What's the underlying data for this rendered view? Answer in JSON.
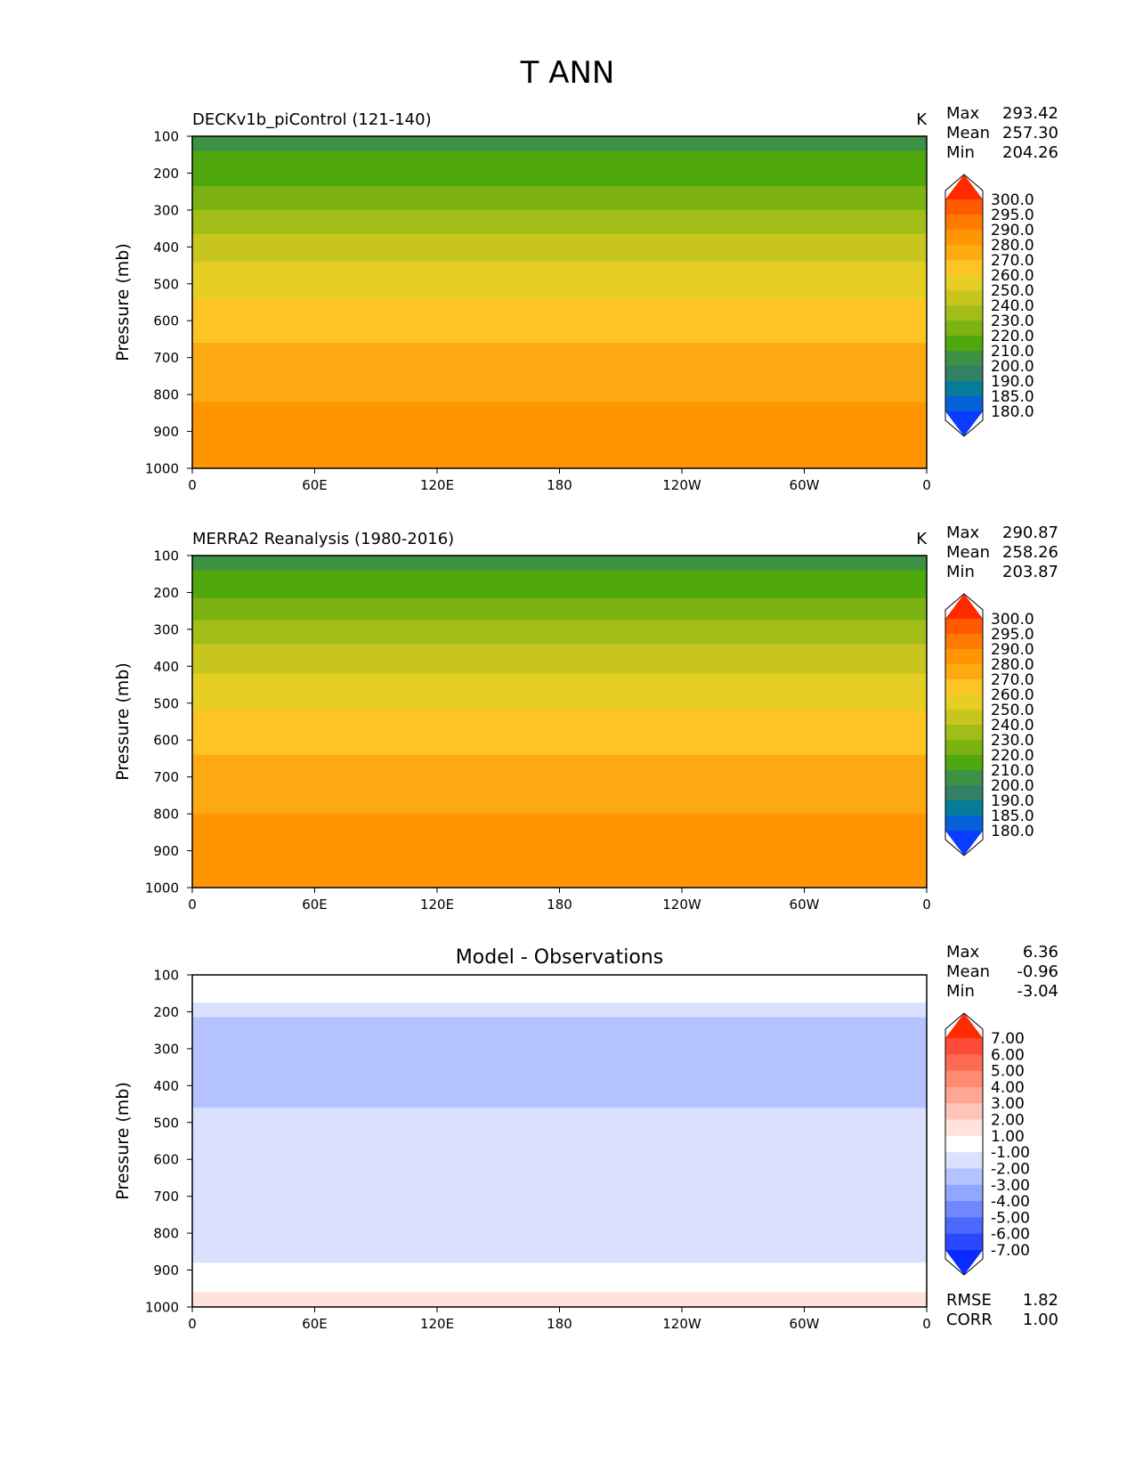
{
  "title": "T ANN",
  "chart_data": [
    {
      "type": "heatmap",
      "title": "DECKv1b_piControl (121-140)",
      "units": "K",
      "ylabel": "Pressure (mb)",
      "xlabel": "",
      "x_ticks": [
        "0",
        "60E",
        "120E",
        "180",
        "120W",
        "60W",
        "0"
      ],
      "y_ticks": [
        "100",
        "200",
        "300",
        "400",
        "500",
        "600",
        "700",
        "800",
        "900",
        "1000"
      ],
      "ylim": [
        1000,
        100
      ],
      "stats": [
        {
          "label": "Max",
          "value": "293.42"
        },
        {
          "label": "Mean",
          "value": "257.30"
        },
        {
          "label": "Min",
          "value": "204.26"
        }
      ],
      "colorbar": {
        "labels": [
          "300.0",
          "295.0",
          "290.0",
          "280.0",
          "270.0",
          "260.0",
          "250.0",
          "240.0",
          "230.0",
          "220.0",
          "210.0",
          "200.0",
          "190.0",
          "185.0",
          "180.0"
        ],
        "colors": [
          "#ff2a00",
          "#ff5a00",
          "#ff7a00",
          "#ff9500",
          "#fdaa12",
          "#fec424",
          "#e6ce24",
          "#c8c61e",
          "#a2bd18",
          "#7cb211",
          "#4fa90e",
          "#3c9142",
          "#338164",
          "#057d99",
          "#0561d8",
          "#0a3cff"
        ]
      },
      "bands": [
        {
          "p_top": 100,
          "p_bottom": 140,
          "color": "#3c9142"
        },
        {
          "p_top": 140,
          "p_bottom": 235,
          "color": "#4fa90e"
        },
        {
          "p_top": 235,
          "p_bottom": 300,
          "color": "#7cb211"
        },
        {
          "p_top": 300,
          "p_bottom": 365,
          "color": "#a2bd18"
        },
        {
          "p_top": 365,
          "p_bottom": 440,
          "color": "#c8c61e"
        },
        {
          "p_top": 440,
          "p_bottom": 540,
          "color": "#e6ce24"
        },
        {
          "p_top": 540,
          "p_bottom": 660,
          "color": "#fec424"
        },
        {
          "p_top": 660,
          "p_bottom": 820,
          "color": "#fdaa12"
        },
        {
          "p_top": 820,
          "p_bottom": 1000,
          "color": "#ff9500"
        }
      ]
    },
    {
      "type": "heatmap",
      "title": "MERRA2 Reanalysis (1980-2016)",
      "units": "K",
      "ylabel": "Pressure (mb)",
      "xlabel": "",
      "x_ticks": [
        "0",
        "60E",
        "120E",
        "180",
        "120W",
        "60W",
        "0"
      ],
      "y_ticks": [
        "100",
        "200",
        "300",
        "400",
        "500",
        "600",
        "700",
        "800",
        "900",
        "1000"
      ],
      "ylim": [
        1000,
        100
      ],
      "stats": [
        {
          "label": "Max",
          "value": "290.87"
        },
        {
          "label": "Mean",
          "value": "258.26"
        },
        {
          "label": "Min",
          "value": "203.87"
        }
      ],
      "colorbar": {
        "labels": [
          "300.0",
          "295.0",
          "290.0",
          "280.0",
          "270.0",
          "260.0",
          "250.0",
          "240.0",
          "230.0",
          "220.0",
          "210.0",
          "200.0",
          "190.0",
          "185.0",
          "180.0"
        ],
        "colors": [
          "#ff2a00",
          "#ff5a00",
          "#ff7a00",
          "#ff9500",
          "#fdaa12",
          "#fec424",
          "#e6ce24",
          "#c8c61e",
          "#a2bd18",
          "#7cb211",
          "#4fa90e",
          "#3c9142",
          "#338164",
          "#057d99",
          "#0561d8",
          "#0a3cff"
        ]
      },
      "bands": [
        {
          "p_top": 100,
          "p_bottom": 140,
          "color": "#3c9142"
        },
        {
          "p_top": 140,
          "p_bottom": 215,
          "color": "#4fa90e"
        },
        {
          "p_top": 215,
          "p_bottom": 275,
          "color": "#7cb211"
        },
        {
          "p_top": 275,
          "p_bottom": 340,
          "color": "#a2bd18"
        },
        {
          "p_top": 340,
          "p_bottom": 420,
          "color": "#c8c61e"
        },
        {
          "p_top": 420,
          "p_bottom": 520,
          "color": "#e6ce24"
        },
        {
          "p_top": 520,
          "p_bottom": 640,
          "color": "#fec424"
        },
        {
          "p_top": 640,
          "p_bottom": 800,
          "color": "#fdaa12"
        },
        {
          "p_top": 800,
          "p_bottom": 1000,
          "color": "#ff9500"
        }
      ]
    },
    {
      "type": "heatmap",
      "title": "Model - Observations",
      "units": "",
      "ylabel": "Pressure (mb)",
      "xlabel": "",
      "x_ticks": [
        "0",
        "60E",
        "120E",
        "180",
        "120W",
        "60W",
        "0"
      ],
      "y_ticks": [
        "100",
        "200",
        "300",
        "400",
        "500",
        "600",
        "700",
        "800",
        "900",
        "1000"
      ],
      "ylim": [
        1000,
        100
      ],
      "stats": [
        {
          "label": "Max",
          "value": "6.36"
        },
        {
          "label": "Mean",
          "value": "-0.96"
        },
        {
          "label": "Min",
          "value": "-3.04"
        }
      ],
      "extra_stats": [
        {
          "label": "RMSE",
          "value": "1.82"
        },
        {
          "label": "CORR",
          "value": "1.00"
        }
      ],
      "colorbar": {
        "labels": [
          "7.00",
          "6.00",
          "5.00",
          "4.00",
          "3.00",
          "2.00",
          "1.00",
          "-1.00",
          "-2.00",
          "-3.00",
          "-4.00",
          "-5.00",
          "-6.00",
          "-7.00"
        ],
        "colors": [
          "#ff2a00",
          "#ff4a3a",
          "#ff6a52",
          "#ff8a72",
          "#ffa594",
          "#ffc4b8",
          "#ffe2dc",
          "#ffffff",
          "#d9e1ff",
          "#b4c3ff",
          "#91a7ff",
          "#7088ff",
          "#4d68ff",
          "#2a48ff",
          "#0a2aff"
        ]
      },
      "bands": [
        {
          "p_top": 100,
          "p_bottom": 175,
          "color": "#ffffff"
        },
        {
          "p_top": 175,
          "p_bottom": 215,
          "color": "#d9e1ff"
        },
        {
          "p_top": 215,
          "p_bottom": 460,
          "color": "#b4c3ff"
        },
        {
          "p_top": 460,
          "p_bottom": 880,
          "color": "#d9e1ff"
        },
        {
          "p_top": 880,
          "p_bottom": 960,
          "color": "#ffffff"
        },
        {
          "p_top": 960,
          "p_bottom": 1000,
          "color": "#ffe2dc"
        }
      ]
    }
  ]
}
